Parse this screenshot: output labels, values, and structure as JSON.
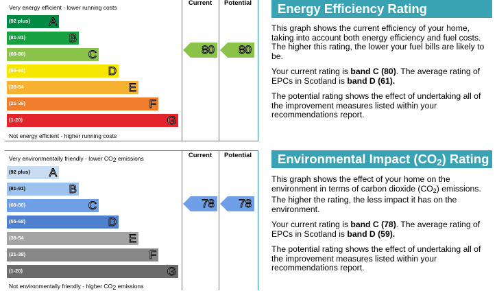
{
  "colors": {
    "accent": "#3aa3b3",
    "rule": "#2a8ab0"
  },
  "energy": {
    "top_caption": "Very energy efficient - lower running costs",
    "bottom_caption": "Not energy efficient - higher running costs",
    "col_current": "Current",
    "col_potential": "Potential",
    "bands": [
      {
        "range": "(92 plus)",
        "letter": "A",
        "color": "#008a44"
      },
      {
        "range": "(81-91)",
        "letter": "B",
        "color": "#18a141"
      },
      {
        "range": "(69-80)",
        "letter": "C",
        "color": "#8bc34a"
      },
      {
        "range": "(55-68)",
        "letter": "D",
        "color": "#f6e600"
      },
      {
        "range": "(39-54",
        "letter": "E",
        "color": "#f8b233"
      },
      {
        "range": "(21-38)",
        "letter": "F",
        "color": "#ef7d2b"
      },
      {
        "range": "(1-20)",
        "letter": "G",
        "color": "#e3242b"
      }
    ],
    "current": "80",
    "potential": "80",
    "current_color": "#8bc34a",
    "title": "Energy Efficiency Rating",
    "p1": "This graph shows the current efficiency of your home, taking into account both energy efficiency and fuel costs. The higher this rating, the lower your fuel bills are likely to be.",
    "p2_a": "Your current rating is ",
    "p2_b": "band C (80)",
    "p2_c": ". The average rating of EPCs in Scotland is ",
    "p2_d": "band D (61).",
    "p3": "The potential rating shows the effect of undertaking all of the improvement measures listed within your recommendations report."
  },
  "environment": {
    "top_caption_a": "Very environmentally friendly - lower CO",
    "top_caption_sub": "2",
    "top_caption_b": " emissions",
    "bottom_caption_a": "Not environmentally friendly - higher CO",
    "bottom_caption_sub": "2",
    "bottom_caption_b": " emissions",
    "col_current": "Current",
    "col_potential": "Potential",
    "bands": [
      {
        "range": "(92 plus)",
        "letter": "A",
        "color": "#c9dcf2",
        "text": "#000"
      },
      {
        "range": "(81-91)",
        "letter": "B",
        "color": "#9ec2ee",
        "text": "#000"
      },
      {
        "range": "(69-80)",
        "letter": "C",
        "color": "#6f9fe6",
        "text": "#fff"
      },
      {
        "range": "(55-68)",
        "letter": "D",
        "color": "#4f7fcf",
        "text": "#fff"
      },
      {
        "range": "(39-54",
        "letter": "E",
        "color": "#a3a3a3",
        "text": "#fff"
      },
      {
        "range": "(21-38)",
        "letter": "F",
        "color": "#888888",
        "text": "#fff"
      },
      {
        "range": "(1-20)",
        "letter": "G",
        "color": "#6b6b6b",
        "text": "#fff"
      }
    ],
    "current": "78",
    "potential": "78",
    "current_color": "#6f9fe6",
    "title_a": "Environmental Impact (CO",
    "title_sub": "2",
    "title_b": ") Rating",
    "p1_a": "This graph shows the effect of your home on the environment in terms of carbon dioxide (CO",
    "p1_sub": "2",
    "p1_b": ") emissions. The higher the rating, the less impact it has on the environment.",
    "p2_a": "Your current rating is ",
    "p2_b": "band C (78)",
    "p2_c": ". The average rating of EPCs in Scotland is ",
    "p2_d": "band D (59).",
    "p3": "The potential rating shows the effect of undertaking all of the improvement measures listed within your recommendations report."
  }
}
